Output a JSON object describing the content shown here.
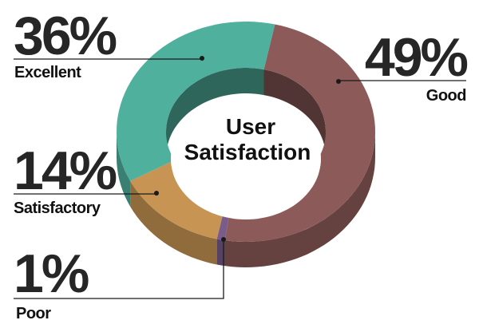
{
  "chart_data": {
    "type": "pie",
    "style": "3d-donut",
    "title": "User Satisfaction",
    "title_lines": [
      "User",
      "Satisfaction"
    ],
    "legend_position": "callouts",
    "slices": [
      {
        "label": "Good",
        "value": 49,
        "display": "49%",
        "color": "#8c5b59"
      },
      {
        "label": "Poor",
        "value": 1,
        "display": "1%",
        "color": "#7a5c8a"
      },
      {
        "label": "Satisfactory",
        "value": 14,
        "display": "14%",
        "color": "#c89454"
      },
      {
        "label": "Excellent",
        "value": 36,
        "display": "36%",
        "color": "#4fb09e"
      }
    ]
  }
}
